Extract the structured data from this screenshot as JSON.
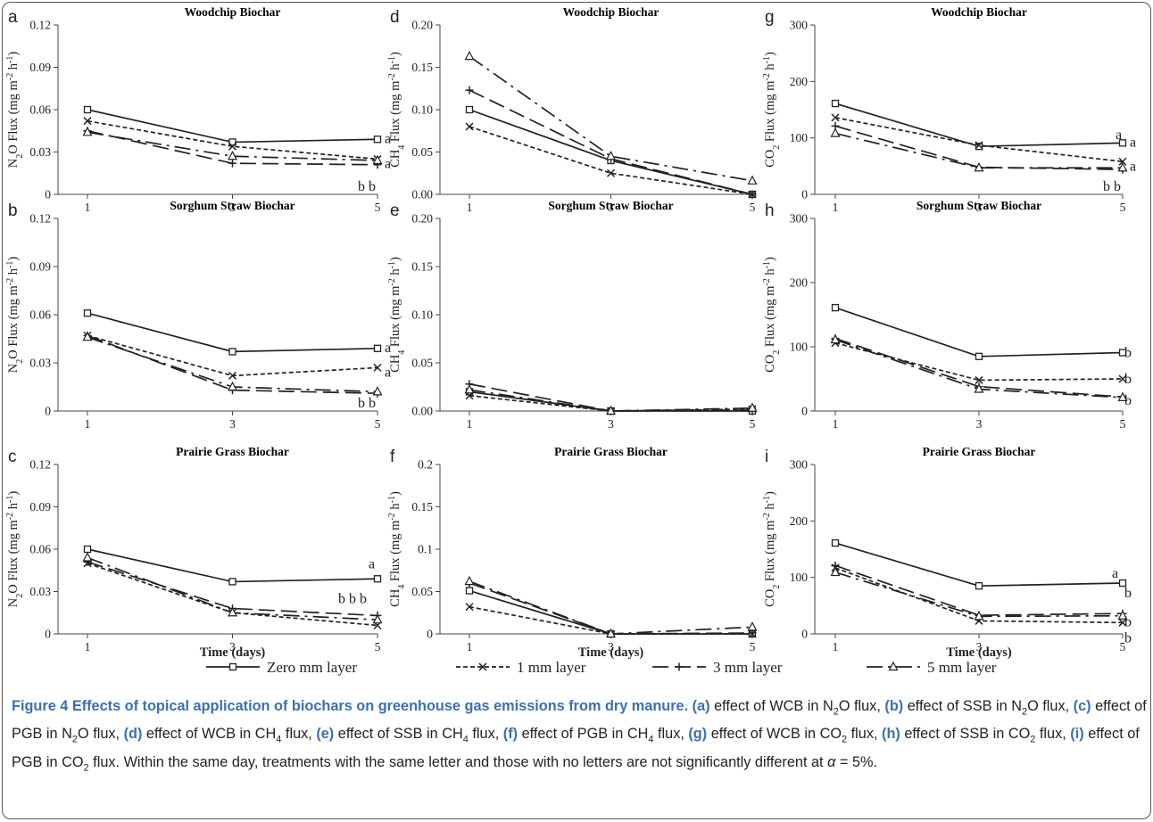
{
  "caption": {
    "title": "Figure 4 Effects of topical application of biochars on greenhouse gas emissions from dry manure.",
    "segments": [
      {
        "t": "(a)",
        "b": true
      },
      {
        "t": " effect of WCB in N"
      },
      {
        "t": "2",
        "sub": true
      },
      {
        "t": "O flux, "
      },
      {
        "t": "(b)",
        "b": true
      },
      {
        "t": " effect of SSB in N"
      },
      {
        "t": "2",
        "sub": true
      },
      {
        "t": "O flux, "
      },
      {
        "t": "(c)",
        "b": true
      },
      {
        "t": " effect of PGB in N"
      },
      {
        "t": "2",
        "sub": true
      },
      {
        "t": "O flux, "
      },
      {
        "t": "(d)",
        "b": true
      },
      {
        "t": " effect of WCB in CH"
      },
      {
        "t": "4",
        "sub": true
      },
      {
        "t": " flux, "
      },
      {
        "t": "(e)",
        "b": true
      },
      {
        "t": " effect of SSB in CH"
      },
      {
        "t": "4",
        "sub": true
      },
      {
        "t": " flux, "
      },
      {
        "t": "(f)",
        "b": true
      },
      {
        "t": " effect of PGB in CH"
      },
      {
        "t": "4",
        "sub": true
      },
      {
        "t": " flux, "
      },
      {
        "t": "(g)",
        "b": true
      },
      {
        "t": " effect of WCB in CO"
      },
      {
        "t": "2",
        "sub": true
      },
      {
        "t": " flux, "
      },
      {
        "t": "(h)",
        "b": true
      },
      {
        "t": " effect of SSB in CO"
      },
      {
        "t": "2",
        "sub": true
      },
      {
        "t": " flux, "
      },
      {
        "t": "(i)",
        "b": true
      },
      {
        "t": " effect of PGB in CO"
      },
      {
        "t": "2",
        "sub": true
      },
      {
        "t": " flux. Within the same day, treatments with the same letter and those with no letters are not significantly different at "
      },
      {
        "t": "α",
        "i": true
      },
      {
        "t": " = 5%."
      }
    ]
  },
  "xlabel": "Time (days)",
  "legend": [
    "Zero mm layer",
    "1 mm layer",
    "3 mm layer",
    "5 mm layer"
  ],
  "chart_data": [
    {
      "id": "a",
      "type": "line",
      "title": "Woodchip Biochar",
      "ylabel": "N2O Flux (mg m-2 h-1)",
      "x": [
        1,
        3,
        5
      ],
      "ylim": [
        0,
        0.12
      ],
      "yticks": [
        "0",
        "0.03",
        "0.06",
        "0.09",
        "0.12"
      ],
      "series": [
        {
          "name": "Zero mm layer",
          "values": [
            0.06,
            0.037,
            0.039
          ]
        },
        {
          "name": "1 mm layer",
          "values": [
            0.052,
            0.034,
            0.025
          ]
        },
        {
          "name": "3 mm layer",
          "values": [
            0.045,
            0.022,
            0.021
          ]
        },
        {
          "name": "5 mm layer",
          "values": [
            0.044,
            0.027,
            0.024
          ]
        }
      ],
      "letters": [
        "a",
        "a",
        "b b"
      ]
    },
    {
      "id": "b",
      "type": "line",
      "title": "Sorghum Straw Biochar",
      "ylabel": "N2O Flux (mg m-2 h-1)",
      "x": [
        1,
        3,
        5
      ],
      "ylim": [
        0,
        0.12
      ],
      "yticks": [
        "0",
        "0.03",
        "0.06",
        "0.09",
        "0.12"
      ],
      "series": [
        {
          "name": "Zero mm layer",
          "values": [
            0.061,
            0.037,
            0.039
          ]
        },
        {
          "name": "1 mm layer",
          "values": [
            0.047,
            0.022,
            0.027
          ]
        },
        {
          "name": "3 mm layer",
          "values": [
            0.047,
            0.013,
            0.011
          ]
        },
        {
          "name": "5 mm layer",
          "values": [
            0.046,
            0.015,
            0.012
          ]
        }
      ],
      "letters": [
        "a",
        "a",
        "b b"
      ]
    },
    {
      "id": "c",
      "type": "line",
      "title": "Prairie Grass Biochar",
      "ylabel": "N2O Flux (mg m-2 h-1)",
      "x": [
        1,
        3,
        5
      ],
      "ylim": [
        0,
        0.12
      ],
      "yticks": [
        "0",
        "0.03",
        "0.06",
        "0.09",
        "0.12"
      ],
      "series": [
        {
          "name": "Zero mm layer",
          "values": [
            0.06,
            0.037,
            0.039
          ]
        },
        {
          "name": "1 mm layer",
          "values": [
            0.05,
            0.015,
            0.006
          ]
        },
        {
          "name": "3 mm layer",
          "values": [
            0.051,
            0.018,
            0.013
          ]
        },
        {
          "name": "5 mm layer",
          "values": [
            0.054,
            0.015,
            0.01
          ]
        }
      ],
      "letters": [
        "a",
        "b b b"
      ]
    },
    {
      "id": "d",
      "type": "line",
      "title": "Woodchip Biochar",
      "ylabel": "CH4 Flux (mg m-2 h-1)",
      "x": [
        1,
        3,
        5
      ],
      "ylim": [
        0,
        0.2
      ],
      "yticks": [
        "0.00",
        "0.05",
        "0.10",
        "0.15",
        "0.20"
      ],
      "series": [
        {
          "name": "Zero mm layer",
          "values": [
            0.1,
            0.04,
            0.0
          ]
        },
        {
          "name": "1 mm layer",
          "values": [
            0.08,
            0.025,
            0.0
          ]
        },
        {
          "name": "3 mm layer",
          "values": [
            0.123,
            0.042,
            0.0
          ]
        },
        {
          "name": "5 mm layer",
          "values": [
            0.163,
            0.045,
            0.016
          ]
        }
      ],
      "letters": []
    },
    {
      "id": "e",
      "type": "line",
      "title": "Sorghum Straw Biochar",
      "ylabel": "CH4 Flux (mg m-2 h-1)",
      "x": [
        1,
        3,
        5
      ],
      "ylim": [
        0,
        0.2
      ],
      "yticks": [
        "0.00",
        "0.05",
        "0.10",
        "0.15",
        "0.20"
      ],
      "series": [
        {
          "name": "Zero mm layer",
          "values": [
            0.02,
            0.0,
            0.0
          ]
        },
        {
          "name": "1 mm layer",
          "values": [
            0.016,
            0.0,
            0.002
          ]
        },
        {
          "name": "3 mm layer",
          "values": [
            0.028,
            0.0,
            0.001
          ]
        },
        {
          "name": "5 mm layer",
          "values": [
            0.022,
            0.0,
            0.003
          ]
        }
      ],
      "letters": []
    },
    {
      "id": "f",
      "type": "line",
      "title": "Prairie Grass Biochar",
      "ylabel": "CH4 Flux (mg m-2 h-1)",
      "x": [
        1,
        3,
        5
      ],
      "ylim": [
        0,
        0.2
      ],
      "yticks": [
        "0",
        "0.05",
        "0.1",
        "0.15",
        "0.2"
      ],
      "series": [
        {
          "name": "Zero mm layer",
          "values": [
            0.051,
            0.0,
            0.0
          ]
        },
        {
          "name": "1 mm layer",
          "values": [
            0.032,
            0.0,
            0.0
          ]
        },
        {
          "name": "3 mm layer",
          "values": [
            0.06,
            0.0,
            0.001
          ]
        },
        {
          "name": "5 mm layer",
          "values": [
            0.062,
            0.0,
            0.008
          ]
        }
      ],
      "letters": []
    },
    {
      "id": "g",
      "type": "line",
      "title": "Woodchip Biochar",
      "ylabel": "CO2 Flux (mg m-2 h-1)",
      "x": [
        1,
        3,
        5
      ],
      "ylim": [
        0,
        300
      ],
      "yticks": [
        "0",
        "100",
        "200",
        "300"
      ],
      "series": [
        {
          "name": "Zero mm layer",
          "values": [
            161,
            85,
            91
          ]
        },
        {
          "name": "1 mm layer",
          "values": [
            136,
            87,
            58
          ]
        },
        {
          "name": "3 mm layer",
          "values": [
            121,
            48,
            44
          ]
        },
        {
          "name": "5 mm layer",
          "values": [
            108,
            47,
            47
          ]
        }
      ],
      "letters": [
        "a",
        "a",
        "b b"
      ]
    },
    {
      "id": "h",
      "type": "line",
      "title": "Sorghum Straw Biochar",
      "ylabel": "CO2 Flux (mg m-2 h-1)",
      "x": [
        1,
        3,
        5
      ],
      "ylim": [
        0,
        300
      ],
      "yticks": [
        "0",
        "100",
        "200",
        "300"
      ],
      "series": [
        {
          "name": "Zero mm layer",
          "values": [
            161,
            85,
            91
          ]
        },
        {
          "name": "1 mm layer",
          "values": [
            106,
            48,
            50
          ]
        },
        {
          "name": "3 mm layer",
          "values": [
            113,
            38,
            22
          ]
        },
        {
          "name": "5 mm layer",
          "values": [
            111,
            34,
            21
          ]
        }
      ],
      "letters": [
        "a",
        "b",
        "b",
        "b"
      ]
    },
    {
      "id": "i",
      "type": "line",
      "title": "Prairie Grass Biochar",
      "ylabel": "CO2 Flux (mg m-2 h-1)",
      "x": [
        1,
        3,
        5
      ],
      "ylim": [
        0,
        300
      ],
      "yticks": [
        "0",
        "100",
        "200",
        "300"
      ],
      "series": [
        {
          "name": "Zero mm layer",
          "values": [
            161,
            85,
            90
          ]
        },
        {
          "name": "1 mm layer",
          "values": [
            117,
            23,
            20
          ]
        },
        {
          "name": "3 mm layer",
          "values": [
            121,
            33,
            36
          ]
        },
        {
          "name": "5 mm layer",
          "values": [
            109,
            31,
            32
          ]
        }
      ],
      "letters": [
        "a",
        "b",
        "b",
        "b"
      ]
    }
  ]
}
